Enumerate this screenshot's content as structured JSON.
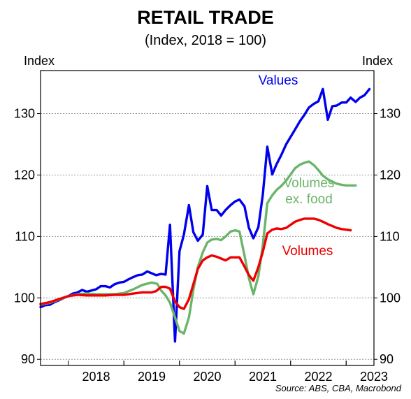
{
  "title": "RETAIL TRADE",
  "subtitle": "(Index, 2018 = 100)",
  "source": "Source: ABS, CBA, Macrobond",
  "chart_data": {
    "type": "line",
    "ylabel_left": "Index",
    "ylabel_right": "Index",
    "ylim": [
      89,
      137
    ],
    "xlim": [
      2017.5,
      2023.5
    ],
    "y_ticks": [
      90,
      100,
      110,
      120,
      130
    ],
    "x_tick_labels": [
      "2018",
      "2019",
      "2020",
      "2021",
      "2022",
      "2023"
    ],
    "grid": true,
    "series": [
      {
        "name": "Values",
        "color": "#0000ee",
        "points": [
          [
            2017.5,
            98.5
          ],
          [
            2017.58,
            98.8
          ],
          [
            2017.67,
            98.9
          ],
          [
            2017.75,
            99.3
          ],
          [
            2017.83,
            99.6
          ],
          [
            2017.92,
            100.0
          ],
          [
            2018.0,
            100.3
          ],
          [
            2018.08,
            100.7
          ],
          [
            2018.17,
            100.9
          ],
          [
            2018.25,
            101.3
          ],
          [
            2018.33,
            101.0
          ],
          [
            2018.42,
            101.2
          ],
          [
            2018.5,
            101.4
          ],
          [
            2018.58,
            101.9
          ],
          [
            2018.67,
            101.9
          ],
          [
            2018.75,
            101.7
          ],
          [
            2018.83,
            102.2
          ],
          [
            2018.92,
            102.5
          ],
          [
            2019.0,
            102.6
          ],
          [
            2019.08,
            103.0
          ],
          [
            2019.17,
            103.4
          ],
          [
            2019.25,
            103.7
          ],
          [
            2019.33,
            103.8
          ],
          [
            2019.42,
            104.3
          ],
          [
            2019.5,
            104.0
          ],
          [
            2019.58,
            103.7
          ],
          [
            2019.67,
            103.9
          ],
          [
            2019.75,
            103.8
          ],
          [
            2019.83,
            111.9
          ],
          [
            2019.92,
            92.9
          ],
          [
            2020.0,
            107.6
          ],
          [
            2020.08,
            110.3
          ],
          [
            2020.17,
            115.1
          ],
          [
            2020.25,
            110.7
          ],
          [
            2020.33,
            109.3
          ],
          [
            2020.42,
            110.3
          ],
          [
            2020.5,
            118.2
          ],
          [
            2020.58,
            114.3
          ],
          [
            2020.67,
            114.3
          ],
          [
            2020.75,
            113.4
          ],
          [
            2020.83,
            114.3
          ],
          [
            2020.92,
            115.1
          ],
          [
            2021.0,
            115.7
          ],
          [
            2021.08,
            116.0
          ],
          [
            2021.17,
            114.9
          ],
          [
            2021.25,
            111.4
          ],
          [
            2021.33,
            109.7
          ],
          [
            2021.42,
            111.5
          ],
          [
            2021.5,
            116.8
          ],
          [
            2021.58,
            124.6
          ],
          [
            2021.67,
            120.1
          ],
          [
            2021.75,
            121.8
          ],
          [
            2021.83,
            123.2
          ],
          [
            2021.92,
            125.0
          ],
          [
            2022.0,
            126.2
          ],
          [
            2022.08,
            127.4
          ],
          [
            2022.17,
            128.8
          ],
          [
            2022.25,
            129.8
          ],
          [
            2022.33,
            131.0
          ],
          [
            2022.42,
            131.6
          ],
          [
            2022.5,
            132.0
          ],
          [
            2022.58,
            134.0
          ],
          [
            2022.67,
            129.0
          ],
          [
            2022.75,
            131.2
          ],
          [
            2022.83,
            131.3
          ],
          [
            2022.92,
            131.8
          ],
          [
            2023.0,
            131.8
          ],
          [
            2023.08,
            132.6
          ],
          [
            2023.17,
            131.9
          ],
          [
            2023.25,
            132.6
          ],
          [
            2023.33,
            133.0
          ],
          [
            2023.42,
            134.0
          ]
        ]
      },
      {
        "name": "Volumes ex. food",
        "label_lines": [
          "Volumes",
          "ex. food"
        ],
        "color": "#6ab56a",
        "points": [
          [
            2017.5,
            98.9
          ],
          [
            2017.67,
            99.2
          ],
          [
            2017.83,
            99.7
          ],
          [
            2018.0,
            100.3
          ],
          [
            2018.17,
            100.6
          ],
          [
            2018.33,
            100.7
          ],
          [
            2018.5,
            100.6
          ],
          [
            2018.67,
            100.6
          ],
          [
            2018.83,
            100.6
          ],
          [
            2019.0,
            100.8
          ],
          [
            2019.17,
            101.4
          ],
          [
            2019.33,
            102.1
          ],
          [
            2019.5,
            102.5
          ],
          [
            2019.6,
            102.3
          ],
          [
            2019.67,
            101.2
          ],
          [
            2019.75,
            100.4
          ],
          [
            2019.83,
            99.2
          ],
          [
            2019.92,
            96.8
          ],
          [
            2020.0,
            94.6
          ],
          [
            2020.08,
            94.2
          ],
          [
            2020.17,
            96.8
          ],
          [
            2020.25,
            101.3
          ],
          [
            2020.33,
            105.0
          ],
          [
            2020.42,
            107.4
          ],
          [
            2020.5,
            109.0
          ],
          [
            2020.58,
            109.5
          ],
          [
            2020.67,
            109.6
          ],
          [
            2020.75,
            109.4
          ],
          [
            2020.83,
            110.0
          ],
          [
            2020.92,
            110.8
          ],
          [
            2021.0,
            111.0
          ],
          [
            2021.08,
            110.8
          ],
          [
            2021.17,
            106.9
          ],
          [
            2021.25,
            103.2
          ],
          [
            2021.33,
            100.6
          ],
          [
            2021.42,
            103.5
          ],
          [
            2021.5,
            108.6
          ],
          [
            2021.58,
            115.4
          ],
          [
            2021.67,
            116.7
          ],
          [
            2021.75,
            117.6
          ],
          [
            2021.83,
            118.2
          ],
          [
            2021.92,
            119.1
          ],
          [
            2022.0,
            120.1
          ],
          [
            2022.08,
            121.1
          ],
          [
            2022.17,
            121.7
          ],
          [
            2022.25,
            122.0
          ],
          [
            2022.33,
            122.2
          ],
          [
            2022.42,
            121.6
          ],
          [
            2022.5,
            120.8
          ],
          [
            2022.58,
            119.9
          ],
          [
            2022.67,
            119.3
          ],
          [
            2022.75,
            118.9
          ],
          [
            2022.83,
            118.6
          ],
          [
            2022.92,
            118.4
          ],
          [
            2023.0,
            118.3
          ],
          [
            2023.08,
            118.3
          ],
          [
            2023.17,
            118.3
          ]
        ]
      },
      {
        "name": "Volumes",
        "color": "#ee0000",
        "points": [
          [
            2017.5,
            99.0
          ],
          [
            2017.67,
            99.3
          ],
          [
            2017.83,
            99.8
          ],
          [
            2018.0,
            100.3
          ],
          [
            2018.17,
            100.5
          ],
          [
            2018.33,
            100.4
          ],
          [
            2018.5,
            100.4
          ],
          [
            2018.67,
            100.4
          ],
          [
            2018.83,
            100.5
          ],
          [
            2019.0,
            100.5
          ],
          [
            2019.17,
            100.7
          ],
          [
            2019.33,
            100.9
          ],
          [
            2019.5,
            100.9
          ],
          [
            2019.58,
            101.1
          ],
          [
            2019.67,
            101.8
          ],
          [
            2019.75,
            101.8
          ],
          [
            2019.83,
            101.5
          ],
          [
            2019.92,
            99.4
          ],
          [
            2020.0,
            98.5
          ],
          [
            2020.08,
            98.2
          ],
          [
            2020.17,
            99.8
          ],
          [
            2020.25,
            102.2
          ],
          [
            2020.33,
            104.7
          ],
          [
            2020.42,
            106.1
          ],
          [
            2020.5,
            106.6
          ],
          [
            2020.58,
            106.9
          ],
          [
            2020.67,
            106.7
          ],
          [
            2020.75,
            106.4
          ],
          [
            2020.83,
            106.1
          ],
          [
            2020.92,
            106.6
          ],
          [
            2021.0,
            106.6
          ],
          [
            2021.08,
            106.6
          ],
          [
            2021.17,
            105.1
          ],
          [
            2021.25,
            103.7
          ],
          [
            2021.33,
            102.8
          ],
          [
            2021.42,
            105.0
          ],
          [
            2021.5,
            107.5
          ],
          [
            2021.58,
            110.5
          ],
          [
            2021.67,
            111.1
          ],
          [
            2021.75,
            111.3
          ],
          [
            2021.83,
            111.2
          ],
          [
            2021.92,
            111.4
          ],
          [
            2022.0,
            111.9
          ],
          [
            2022.08,
            112.4
          ],
          [
            2022.17,
            112.7
          ],
          [
            2022.25,
            112.9
          ],
          [
            2022.33,
            112.9
          ],
          [
            2022.42,
            112.9
          ],
          [
            2022.5,
            112.7
          ],
          [
            2022.58,
            112.4
          ],
          [
            2022.67,
            112.0
          ],
          [
            2022.75,
            111.7
          ],
          [
            2022.83,
            111.4
          ],
          [
            2022.92,
            111.2
          ],
          [
            2023.0,
            111.1
          ],
          [
            2023.08,
            111.0
          ]
        ]
      }
    ]
  }
}
